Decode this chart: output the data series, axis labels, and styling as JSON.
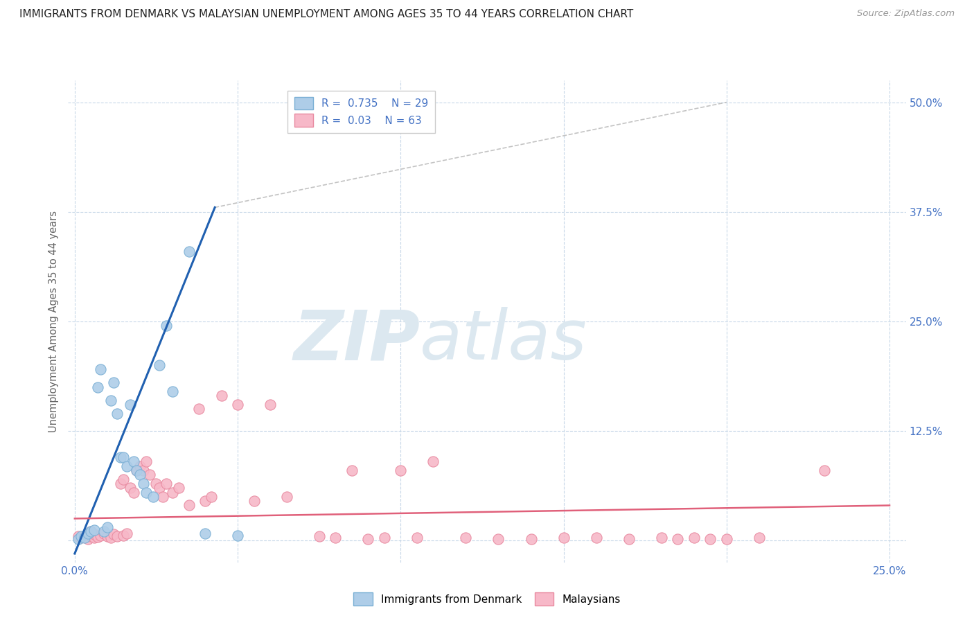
{
  "title": "IMMIGRANTS FROM DENMARK VS MALAYSIAN UNEMPLOYMENT AMONG AGES 35 TO 44 YEARS CORRELATION CHART",
  "source": "Source: ZipAtlas.com",
  "ylabel": "Unemployment Among Ages 35 to 44 years",
  "xlim": [
    -0.002,
    0.255
  ],
  "ylim": [
    -0.025,
    0.525
  ],
  "xticks": [
    0.0,
    0.05,
    0.1,
    0.15,
    0.2,
    0.25
  ],
  "xtick_labels": [
    "0.0%",
    "",
    "",
    "",
    "",
    "25.0%"
  ],
  "yticks": [
    0.0,
    0.125,
    0.25,
    0.375,
    0.5
  ],
  "ytick_labels": [
    "",
    "12.5%",
    "25.0%",
    "37.5%",
    "50.0%"
  ],
  "R_blue": 0.735,
  "N_blue": 29,
  "R_pink": 0.03,
  "N_pink": 63,
  "blue_face_color": "#aecde8",
  "blue_edge_color": "#7aafd4",
  "pink_face_color": "#f7b8c8",
  "pink_edge_color": "#e88aa0",
  "trend_blue_color": "#2060b0",
  "trend_pink_color": "#e0607a",
  "background_color": "#ffffff",
  "grid_color": "#c8d8e8",
  "watermark_color": "#dce8f0",
  "blue_scatter_x": [
    0.001,
    0.002,
    0.003,
    0.004,
    0.005,
    0.006,
    0.007,
    0.008,
    0.009,
    0.01,
    0.011,
    0.012,
    0.013,
    0.014,
    0.015,
    0.016,
    0.017,
    0.018,
    0.019,
    0.02,
    0.021,
    0.022,
    0.024,
    0.026,
    0.028,
    0.03,
    0.035,
    0.04,
    0.05
  ],
  "blue_scatter_y": [
    0.002,
    0.005,
    0.003,
    0.008,
    0.01,
    0.012,
    0.175,
    0.195,
    0.01,
    0.015,
    0.16,
    0.18,
    0.145,
    0.095,
    0.095,
    0.085,
    0.155,
    0.09,
    0.08,
    0.075,
    0.065,
    0.055,
    0.05,
    0.2,
    0.245,
    0.17,
    0.33,
    0.008,
    0.006
  ],
  "pink_scatter_x": [
    0.001,
    0.002,
    0.003,
    0.004,
    0.004,
    0.005,
    0.005,
    0.006,
    0.006,
    0.007,
    0.008,
    0.009,
    0.01,
    0.011,
    0.012,
    0.013,
    0.014,
    0.015,
    0.015,
    0.016,
    0.017,
    0.018,
    0.019,
    0.02,
    0.021,
    0.022,
    0.023,
    0.025,
    0.026,
    0.027,
    0.028,
    0.03,
    0.032,
    0.035,
    0.038,
    0.04,
    0.042,
    0.045,
    0.05,
    0.055,
    0.06,
    0.065,
    0.075,
    0.08,
    0.085,
    0.09,
    0.095,
    0.1,
    0.105,
    0.11,
    0.12,
    0.13,
    0.14,
    0.15,
    0.16,
    0.17,
    0.18,
    0.185,
    0.19,
    0.195,
    0.2,
    0.21,
    0.23
  ],
  "pink_scatter_y": [
    0.005,
    0.003,
    0.004,
    0.002,
    0.008,
    0.005,
    0.01,
    0.003,
    0.007,
    0.004,
    0.006,
    0.008,
    0.005,
    0.003,
    0.007,
    0.005,
    0.065,
    0.006,
    0.07,
    0.008,
    0.06,
    0.055,
    0.08,
    0.085,
    0.08,
    0.09,
    0.075,
    0.065,
    0.06,
    0.05,
    0.065,
    0.055,
    0.06,
    0.04,
    0.15,
    0.045,
    0.05,
    0.165,
    0.155,
    0.045,
    0.155,
    0.05,
    0.005,
    0.003,
    0.08,
    0.002,
    0.003,
    0.08,
    0.003,
    0.09,
    0.003,
    0.002,
    0.002,
    0.003,
    0.003,
    0.002,
    0.003,
    0.002,
    0.003,
    0.002,
    0.002,
    0.003,
    0.08
  ],
  "trend_blue_x0": 0.0,
  "trend_blue_y0": -0.015,
  "trend_blue_x1": 0.043,
  "trend_blue_y1": 0.38,
  "trend_blue_dash_x0": 0.043,
  "trend_blue_dash_y0": 0.38,
  "trend_blue_dash_x1": 0.2,
  "trend_blue_dash_y1": 0.5,
  "trend_pink_x0": 0.0,
  "trend_pink_y0": 0.025,
  "trend_pink_x1": 0.25,
  "trend_pink_y1": 0.04
}
